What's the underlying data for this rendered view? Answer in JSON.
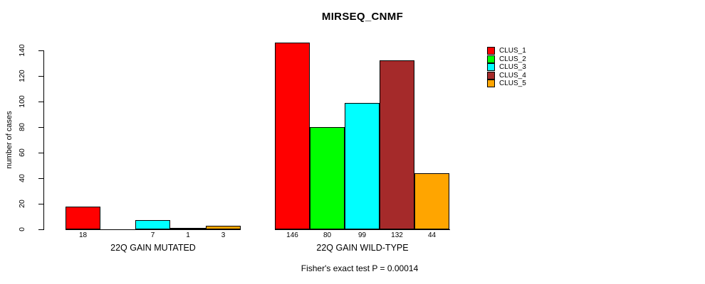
{
  "chart_data": {
    "type": "bar",
    "title": "MIRSEQ_CNMF",
    "ylabel": "number of cases",
    "xlabel": "",
    "ylim": [
      0,
      140
    ],
    "yticks": [
      0,
      20,
      40,
      60,
      80,
      100,
      120,
      140
    ],
    "grid": false,
    "legend_position": "top-right",
    "clusters": [
      {
        "name": "CLUS_1",
        "color": "#FF0000"
      },
      {
        "name": "CLUS_2",
        "color": "#00FF00"
      },
      {
        "name": "CLUS_3",
        "color": "#00FFFF"
      },
      {
        "name": "CLUS_4",
        "color": "#A52A2A"
      },
      {
        "name": "CLUS_5",
        "color": "#FFA500"
      }
    ],
    "groups": [
      {
        "label": "22Q GAIN MUTATED",
        "values": [
          18,
          0,
          7,
          1,
          3
        ],
        "value_labels": [
          "18",
          "",
          "7",
          "1",
          "3"
        ]
      },
      {
        "label": "22Q GAIN WILD-TYPE",
        "values": [
          146,
          80,
          99,
          132,
          44
        ],
        "value_labels": [
          "146",
          "80",
          "99",
          "132",
          "44"
        ]
      }
    ],
    "annotation": "Fisher's exact test P = 0.00014"
  }
}
